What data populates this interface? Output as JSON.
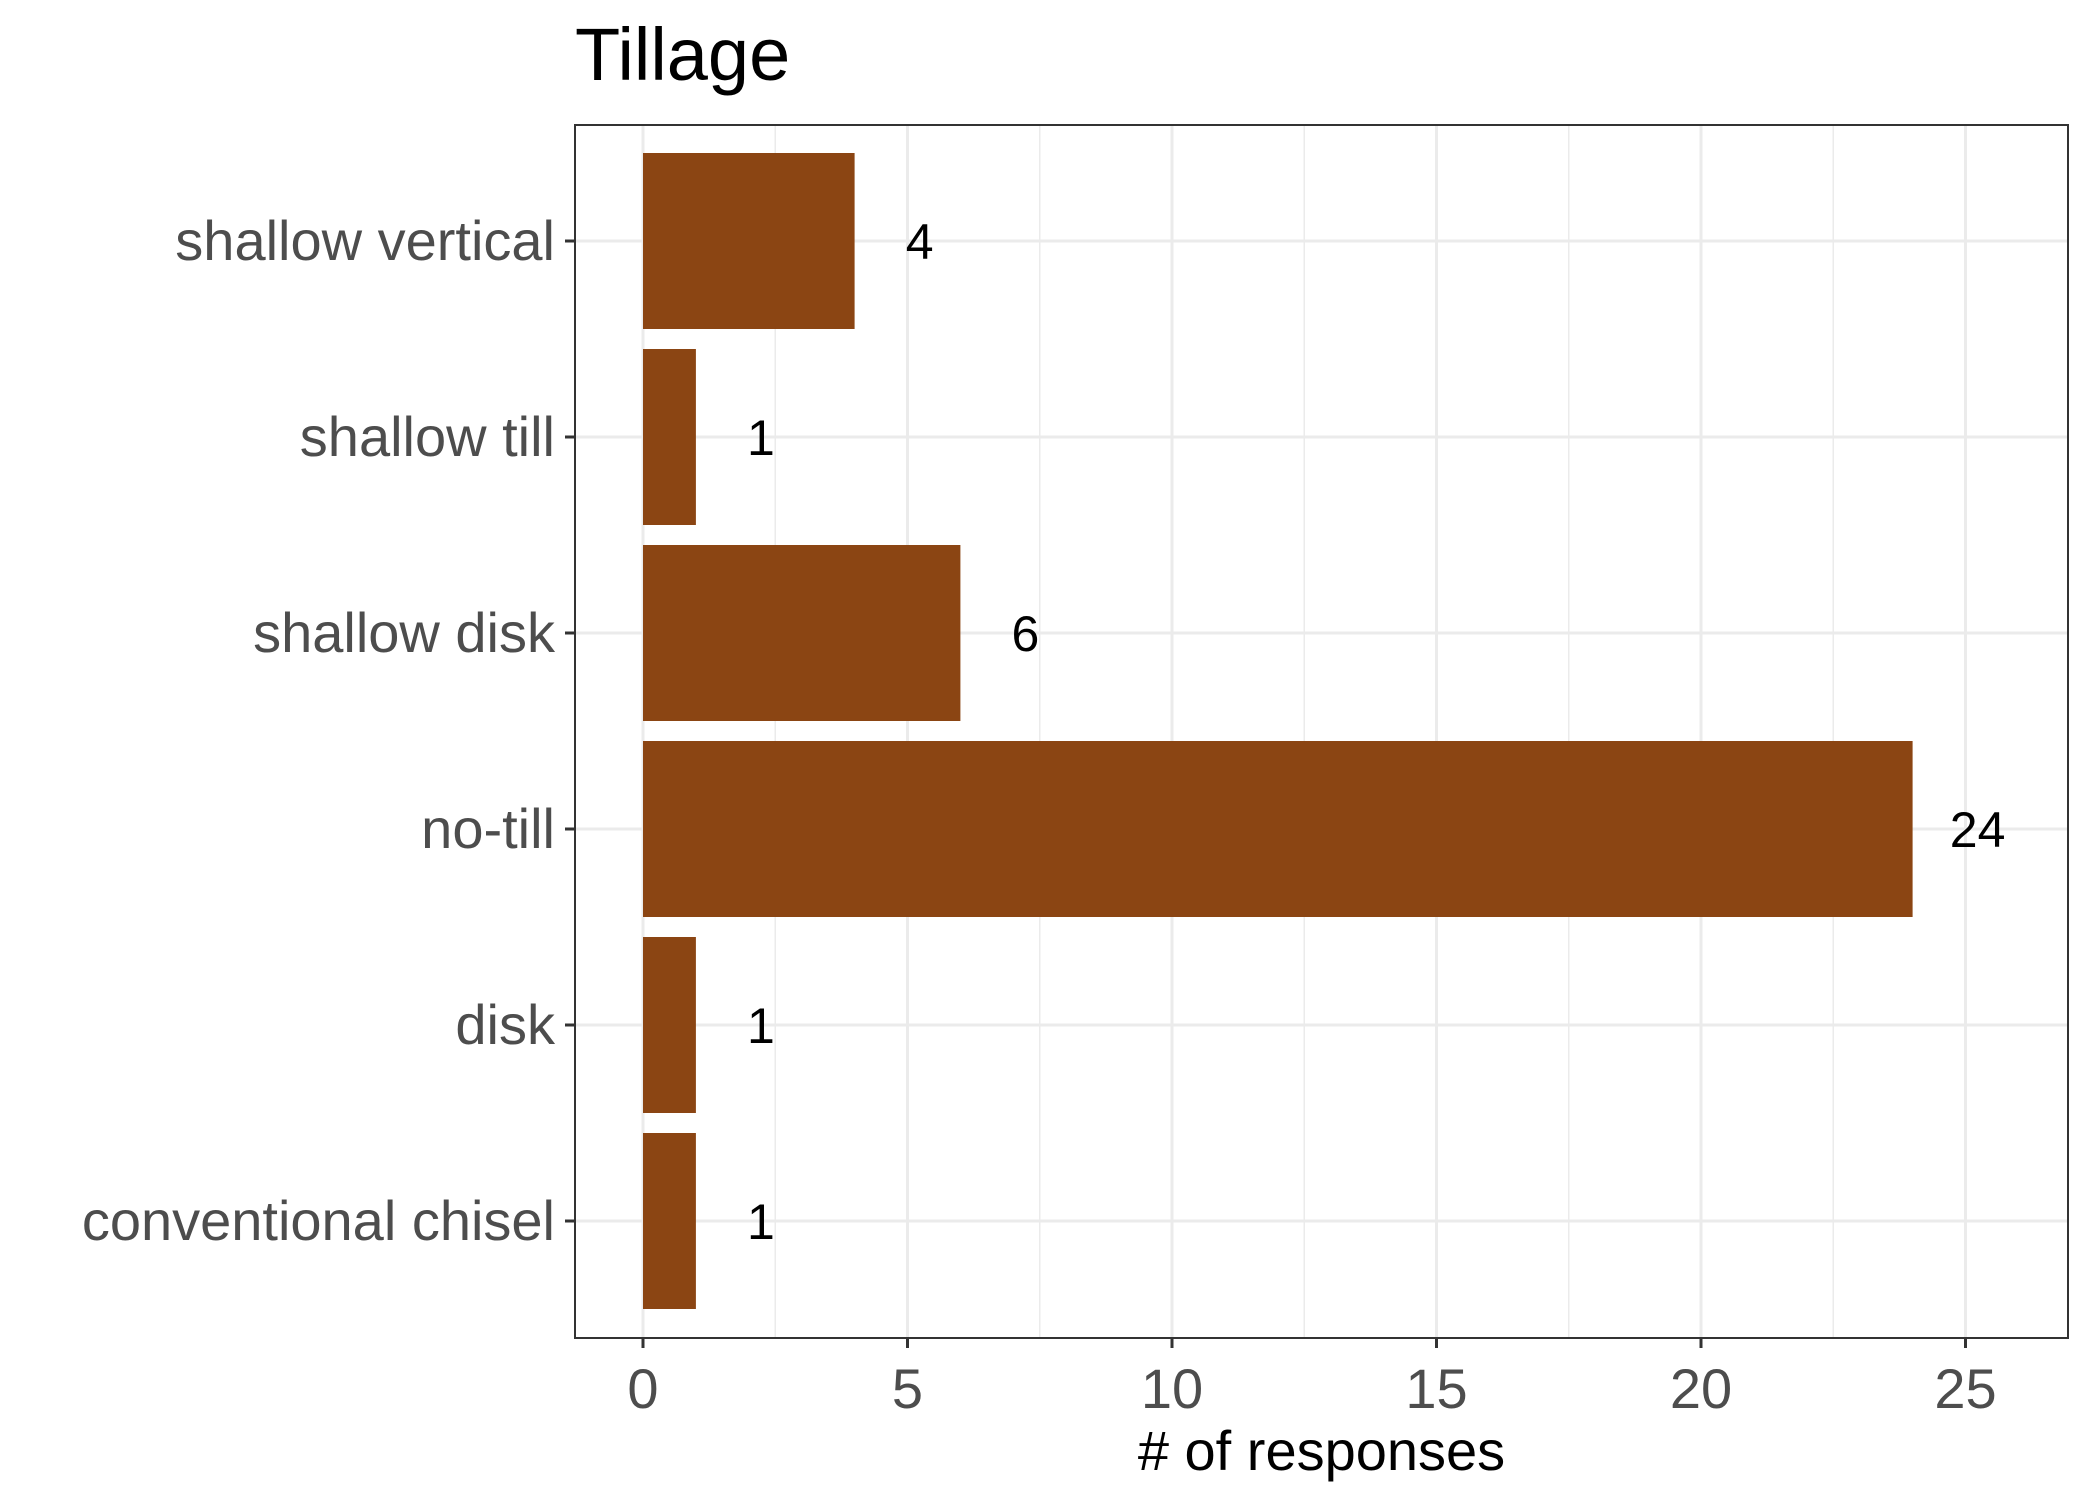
{
  "chart_data": {
    "type": "bar",
    "orientation": "horizontal",
    "title": "Tillage",
    "xlabel": "# of responses",
    "ylabel": "",
    "categories": [
      "conventional chisel",
      "disk",
      "no-till",
      "shallow disk",
      "shallow till",
      "shallow vertical"
    ],
    "values": [
      1,
      1,
      24,
      6,
      1,
      4
    ],
    "data_labels": [
      "1",
      "1",
      "24",
      "6",
      "1",
      "4"
    ],
    "xlim": [
      0,
      27
    ],
    "xticks": [
      0,
      5,
      10,
      15,
      20,
      25
    ],
    "xtick_labels": [
      "0",
      "5",
      "10",
      "15",
      "20",
      "25"
    ],
    "grid": true,
    "bar_color": "#8B4513",
    "grid_color": "#ebebeb",
    "panel_border_color": "#333333"
  }
}
